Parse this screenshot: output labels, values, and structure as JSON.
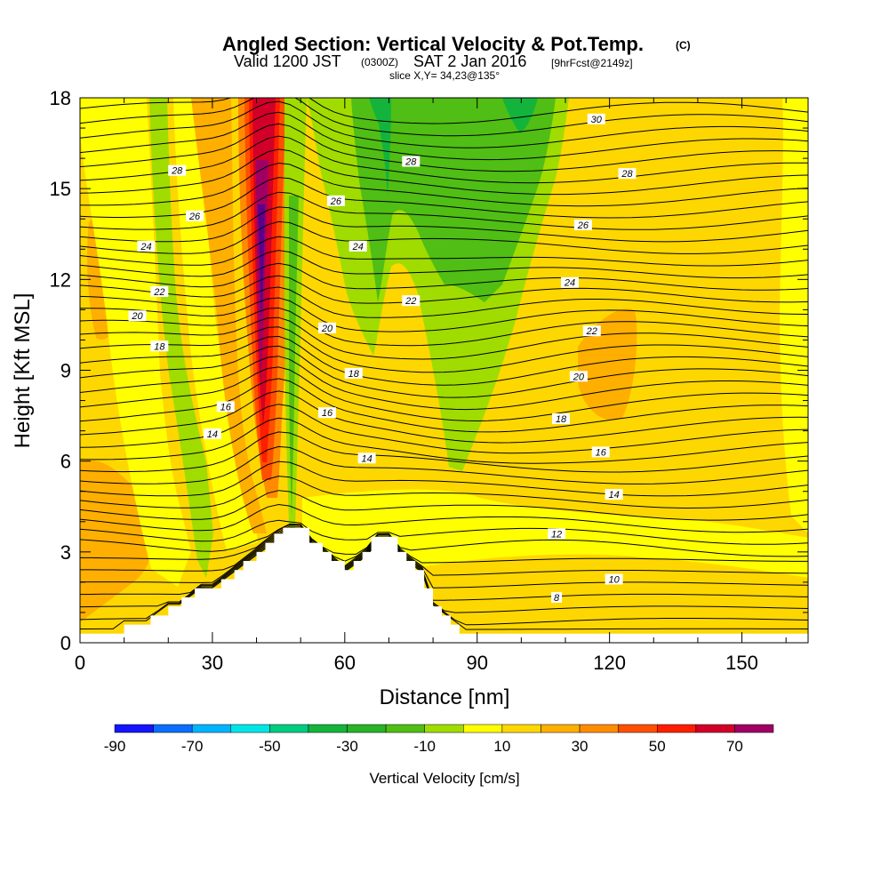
{
  "header": {
    "title": "Angled Section: Vertical Velocity & Pot.Temp.",
    "title_mark": "(C)",
    "valid": "Valid 1200 JST",
    "valid_utc": "(0300Z)",
    "valid_date": "SAT 2 Jan 2016",
    "forecast": "[9hrFcst@2149z]",
    "slice": "slice X,Y= 34,23@135°"
  },
  "chart_data": {
    "type": "heatmap",
    "xlabel": "Distance [nm]",
    "ylabel": "Height [Kft MSL]",
    "xlim": [
      0,
      165
    ],
    "ylim": [
      0,
      18
    ],
    "xticks": [
      0,
      30,
      60,
      90,
      120,
      150
    ],
    "yticks": [
      0,
      3,
      6,
      9,
      12,
      15,
      18
    ],
    "fill_variable": "Vertical Velocity [cm/s]",
    "contour_variable": "Pot.Temp. (C)",
    "colorbar": {
      "label": "Vertical Velocity [cm/s]",
      "bounds": [
        -90,
        -80,
        -70,
        -60,
        -50,
        -40,
        -30,
        -20,
        -10,
        0,
        10,
        20,
        30,
        40,
        50,
        60,
        70,
        80
      ],
      "colors": [
        "#1414ff",
        "#0a6eff",
        "#00b4ff",
        "#00e6e6",
        "#00cc80",
        "#14b43c",
        "#28b428",
        "#50be14",
        "#a0dc00",
        "#ffff00",
        "#ffd700",
        "#ffaf00",
        "#ff8c00",
        "#ff5000",
        "#ff1e00",
        "#d20028",
        "#a00064"
      ],
      "tick_labels": [
        "-90",
        "-70",
        "-50",
        "-30",
        "-10",
        "10",
        "30",
        "50",
        "70"
      ]
    },
    "terrain_profile": [
      [
        0,
        0.3
      ],
      [
        10,
        0.3
      ],
      [
        10,
        0.6
      ],
      [
        16,
        0.6
      ],
      [
        16,
        0.9
      ],
      [
        20,
        0.9
      ],
      [
        20,
        1.2
      ],
      [
        23,
        1.2
      ],
      [
        23,
        1.5
      ],
      [
        26,
        1.5
      ],
      [
        26,
        1.8
      ],
      [
        32,
        1.8
      ],
      [
        32,
        2.1
      ],
      [
        35,
        2.1
      ],
      [
        35,
        2.4
      ],
      [
        37,
        2.4
      ],
      [
        37,
        2.7
      ],
      [
        40,
        2.7
      ],
      [
        40,
        3.0
      ],
      [
        42,
        3.0
      ],
      [
        42,
        3.3
      ],
      [
        44,
        3.3
      ],
      [
        44,
        3.6
      ],
      [
        46,
        3.6
      ],
      [
        46,
        3.8
      ],
      [
        52,
        3.8
      ],
      [
        52,
        3.3
      ],
      [
        55,
        3.3
      ],
      [
        55,
        3.0
      ],
      [
        57,
        3.0
      ],
      [
        57,
        2.7
      ],
      [
        60,
        2.7
      ],
      [
        60,
        2.4
      ],
      [
        62,
        2.4
      ],
      [
        62,
        2.7
      ],
      [
        64,
        2.7
      ],
      [
        64,
        3.0
      ],
      [
        66,
        3.0
      ],
      [
        66,
        3.5
      ],
      [
        72,
        3.5
      ],
      [
        72,
        3.0
      ],
      [
        74,
        3.0
      ],
      [
        74,
        2.7
      ],
      [
        76,
        2.7
      ],
      [
        76,
        2.4
      ],
      [
        78,
        2.4
      ],
      [
        78,
        1.8
      ],
      [
        80,
        1.8
      ],
      [
        80,
        1.2
      ],
      [
        82,
        1.2
      ],
      [
        82,
        0.9
      ],
      [
        84,
        0.9
      ],
      [
        84,
        0.6
      ],
      [
        86,
        0.6
      ],
      [
        86,
        0.3
      ],
      [
        165,
        0.3
      ]
    ],
    "contour_labels": [
      {
        "text": "30",
        "x": 117,
        "y": 17.3
      },
      {
        "text": "28",
        "x": 22,
        "y": 15.6
      },
      {
        "text": "28",
        "x": 75,
        "y": 15.9
      },
      {
        "text": "28",
        "x": 124,
        "y": 15.5
      },
      {
        "text": "26",
        "x": 26,
        "y": 14.1
      },
      {
        "text": "26",
        "x": 58,
        "y": 14.6
      },
      {
        "text": "26",
        "x": 114,
        "y": 13.8
      },
      {
        "text": "24",
        "x": 15,
        "y": 13.1
      },
      {
        "text": "24",
        "x": 63,
        "y": 13.1
      },
      {
        "text": "24",
        "x": 111,
        "y": 11.9
      },
      {
        "text": "22",
        "x": 18,
        "y": 11.6
      },
      {
        "text": "22",
        "x": 75,
        "y": 11.3
      },
      {
        "text": "22",
        "x": 116,
        "y": 10.3
      },
      {
        "text": "20",
        "x": 13,
        "y": 10.8
      },
      {
        "text": "20",
        "x": 56,
        "y": 10.4
      },
      {
        "text": "20",
        "x": 113,
        "y": 8.8
      },
      {
        "text": "18",
        "x": 18,
        "y": 9.8
      },
      {
        "text": "18",
        "x": 62,
        "y": 8.9
      },
      {
        "text": "18",
        "x": 109,
        "y": 7.4
      },
      {
        "text": "16",
        "x": 33,
        "y": 7.8
      },
      {
        "text": "16",
        "x": 56,
        "y": 7.6
      },
      {
        "text": "16",
        "x": 118,
        "y": 6.3
      },
      {
        "text": "14",
        "x": 30,
        "y": 6.9
      },
      {
        "text": "14",
        "x": 65,
        "y": 6.1
      },
      {
        "text": "14",
        "x": 121,
        "y": 4.9
      },
      {
        "text": "12",
        "x": 108,
        "y": 3.6
      },
      {
        "text": "10",
        "x": 121,
        "y": 2.1
      },
      {
        "text": "8",
        "x": 108,
        "y": 1.5
      }
    ]
  }
}
